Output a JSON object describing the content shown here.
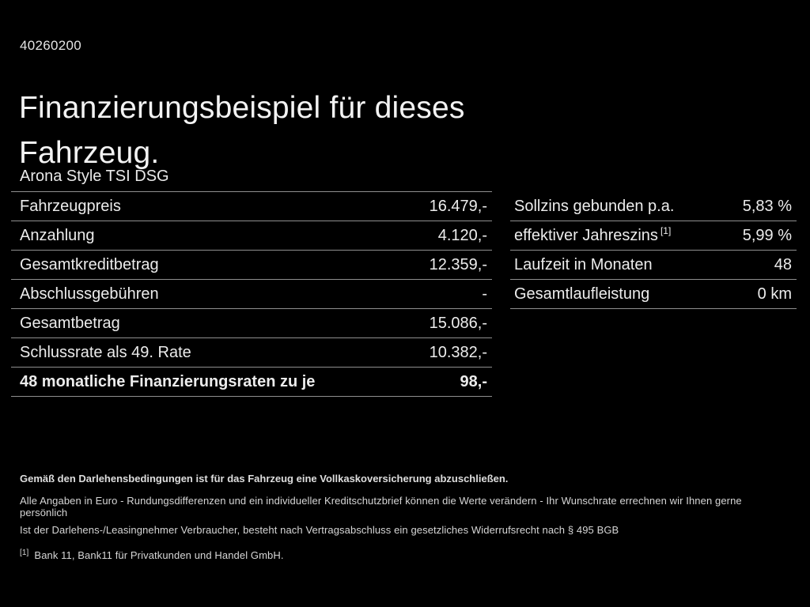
{
  "page": {
    "ref_number": "40260200",
    "title_line1": "Finanzierungsbeispiel für dieses",
    "title_line2": "Fahrzeug.",
    "vehicle_model": "Arona Style TSI DSG"
  },
  "finance_table_left": {
    "rows": [
      {
        "label": "Fahrzeugpreis",
        "value": "16.479,-"
      },
      {
        "label": "Anzahlung",
        "value": "4.120,-"
      },
      {
        "label": "Gesamtkreditbetrag",
        "value": "12.359,-"
      },
      {
        "label": "Abschlussgebühren",
        "value": "-"
      },
      {
        "label": "Gesamtbetrag",
        "value": "15.086,-"
      },
      {
        "label": "Schlussrate als 49. Rate",
        "value": "10.382,-"
      },
      {
        "label": "48 monatliche Finanzierungsraten zu je",
        "value": "98,-"
      }
    ]
  },
  "finance_table_right": {
    "rows": [
      {
        "label": "Sollzins gebunden p.a.",
        "sup": "",
        "value": "5,83 %"
      },
      {
        "label": "effektiver Jahreszins",
        "sup": "[1]",
        "value": "5,99 %"
      },
      {
        "label": "Laufzeit in Monaten",
        "sup": "",
        "value": "48"
      },
      {
        "label": "Gesamtlaufleistung",
        "sup": "",
        "value": "0 km"
      }
    ]
  },
  "footnotes": {
    "insurance_note": "Gemäß den Darlehensbedingungen ist für das Fahrzeug eine Vollkaskoversicherung abzuschließen.",
    "disclaimer_line1": "Alle Angaben in Euro - Rundungsdifferenzen und ein individueller Kreditschutzbrief können die Werte verändern - Ihr Wunschrate errechnen wir Ihnen gerne persönlich",
    "disclaimer_line2": "Ist der Darlehens-/Leasingnehmer Verbraucher, besteht nach Vertragsabschluss ein gesetzliches Widerrufsrecht nach § 495 BGB",
    "bank_reference_marker": "[1]",
    "bank_reference": "Bank 11, Bank11 für Privatkunden und Handel GmbH."
  },
  "colors": {
    "background": "#000000",
    "text": "#ececec",
    "divider": "#8f8f8f"
  }
}
